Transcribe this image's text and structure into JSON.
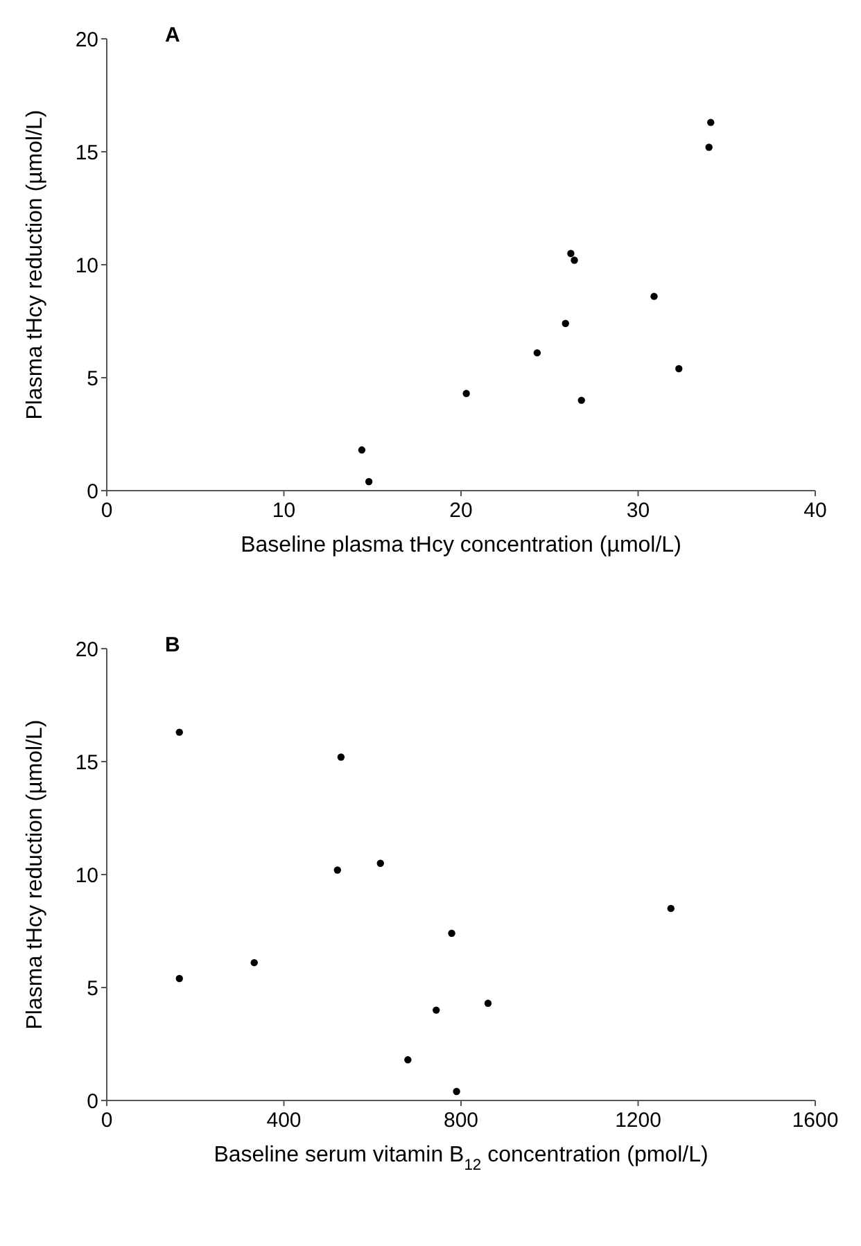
{
  "chart_data": [
    {
      "type": "scatter",
      "title": "A",
      "xlabel": "Baseline plasma tHcy concentration (µmol/L)",
      "ylabel": "Plasma tHcy reduction (µmol/L)",
      "xlim": [
        0,
        40
      ],
      "xticks": [
        0,
        10,
        20,
        30,
        40
      ],
      "ylim": [
        0,
        20
      ],
      "yticks": [
        0,
        5,
        10,
        15,
        20
      ],
      "marker": "circle",
      "series": [
        {
          "color": "#000000",
          "x": [
            14.4,
            14.8,
            20.3,
            24.3,
            25.9,
            26.2,
            26.4,
            26.8,
            30.9,
            32.3,
            34.0,
            34.1
          ],
          "values": [
            1.8,
            0.4,
            4.3,
            6.1,
            7.4,
            10.5,
            10.2,
            4.0,
            8.6,
            5.4,
            15.2,
            16.3
          ]
        }
      ]
    },
    {
      "type": "scatter",
      "title": "B",
      "xlabel": "Baseline serum vitamin B$_{12}$ concentration (pmol/L)",
      "ylabel": "Plasma tHcy reduction (µmol/L)",
      "xlim": [
        0,
        1600
      ],
      "xticks": [
        0,
        400,
        800,
        1200,
        1600
      ],
      "ylim": [
        0,
        20
      ],
      "yticks": [
        0,
        5,
        10,
        15,
        20
      ],
      "marker": "circle",
      "series": [
        {
          "color": "#000000",
          "x": [
            164,
            529,
            521,
            618,
            1274,
            779,
            164,
            333,
            744,
            861,
            680,
            790
          ],
          "values": [
            16.3,
            15.2,
            10.2,
            10.5,
            8.5,
            7.4,
            5.4,
            6.1,
            4.0,
            4.3,
            1.8,
            0.4
          ]
        }
      ]
    }
  ]
}
